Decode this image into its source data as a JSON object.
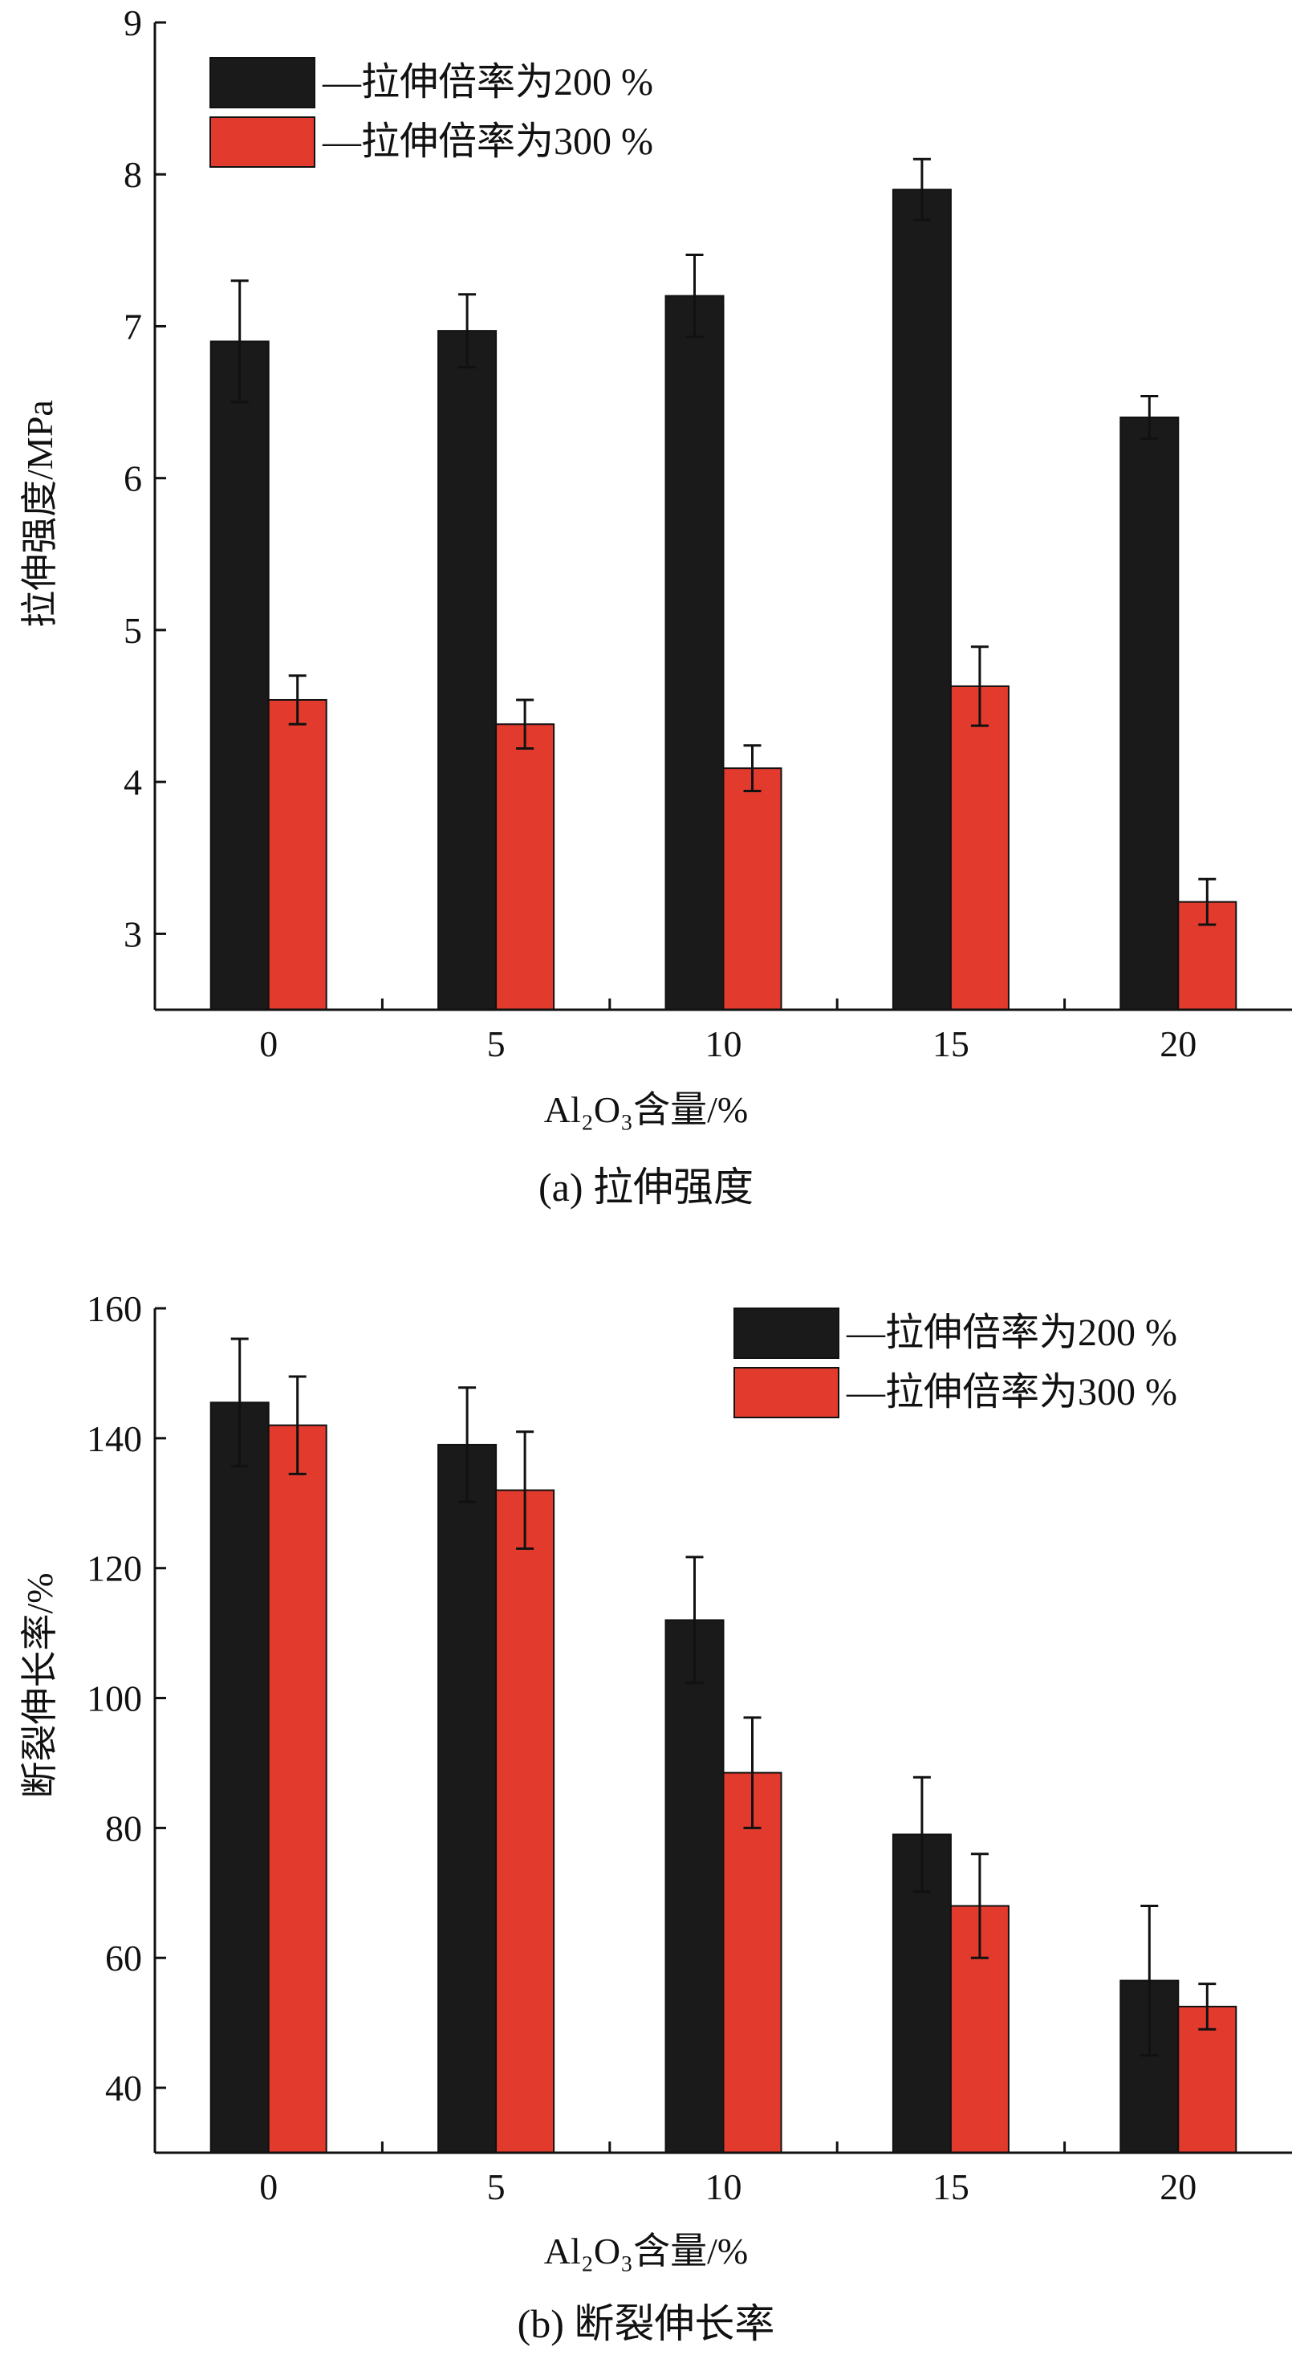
{
  "colors": {
    "series1": "#1a1a1a",
    "series2": "#e23b2e"
  },
  "chart_data": [
    {
      "type": "bar",
      "caption": "(a) 拉伸强度",
      "xlabel": "Al₂O₃含量/%",
      "ylabel": "拉伸强度/MPa",
      "categories": [
        "0",
        "5",
        "10",
        "15",
        "20"
      ],
      "ylim": [
        2.5,
        9
      ],
      "yticks": [
        3,
        4,
        5,
        6,
        7,
        8,
        9
      ],
      "legend_position": "top-left",
      "series": [
        {
          "name": "—拉伸倍率为200 %",
          "values": [
            6.9,
            6.97,
            7.2,
            7.9,
            6.4
          ],
          "errors": [
            0.4,
            0.24,
            0.27,
            0.2,
            0.14
          ]
        },
        {
          "name": "—拉伸倍率为300 %",
          "values": [
            4.54,
            4.38,
            4.09,
            4.63,
            3.21
          ],
          "errors": [
            0.16,
            0.16,
            0.15,
            0.26,
            0.15
          ]
        }
      ]
    },
    {
      "type": "bar",
      "caption": "(b) 断裂伸长率",
      "xlabel": "Al₂O₃含量/%",
      "ylabel": "断裂伸长率/%",
      "categories": [
        "0",
        "5",
        "10",
        "15",
        "20"
      ],
      "ylim": [
        30,
        160
      ],
      "yticks": [
        40,
        60,
        80,
        100,
        120,
        140,
        160
      ],
      "legend_position": "top-right",
      "series": [
        {
          "name": "—拉伸倍率为200 %",
          "values": [
            145.5,
            139,
            112,
            79,
            56.5
          ],
          "errors": [
            9.8,
            8.8,
            9.7,
            8.8,
            11.5
          ]
        },
        {
          "name": "—拉伸倍率为300 %",
          "values": [
            142,
            132,
            88.5,
            68,
            52.5
          ],
          "errors": [
            7.5,
            9,
            8.5,
            8,
            3.5
          ]
        }
      ]
    }
  ]
}
